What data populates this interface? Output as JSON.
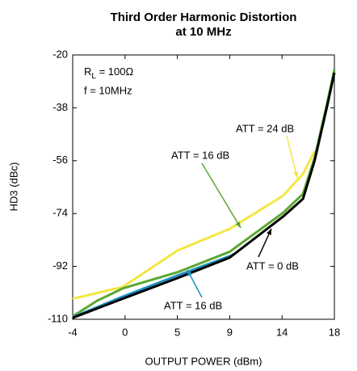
{
  "chart_data": {
    "type": "line",
    "title": [
      "Third Order Harmonic Distortion",
      "at 10 MHz"
    ],
    "xlabel": "OUTPUT POWER (dBm)",
    "ylabel": "HD3  (dBc)",
    "xlim": [
      -4,
      18.5
    ],
    "xticks": [
      -4,
      {
        "value": 0.5,
        "label": "0"
      },
      5,
      {
        "value": 9.5,
        "label": "9"
      },
      14,
      {
        "value": 18.5,
        "label": "18"
      }
    ],
    "ylim": [
      -110,
      -20
    ],
    "yticks": [
      -110,
      -92,
      -74,
      -56,
      -38,
      -20
    ],
    "grid": false,
    "conditions": [
      {
        "base": "R",
        "sub": "L",
        "rest": " = 100Ω"
      },
      "f = 10MHz"
    ],
    "series": [
      {
        "name": "ATT = 24 dB",
        "color": "#f5e642",
        "x": [
          -4,
          0.3,
          5,
          9.5,
          14.1,
          15.8,
          16.8
        ],
        "values": [
          -103,
          -99,
          -86.6,
          -79.2,
          -67.9,
          -60.5,
          -52.8
        ]
      },
      {
        "name": "ATT = 16 dB",
        "color": "#5aa832",
        "x": [
          -4,
          -1.9,
          0.3,
          5,
          9.5,
          14.1,
          15.8,
          16.8,
          17.9,
          18.5
        ],
        "values": [
          -109,
          -103.7,
          -99.5,
          -94,
          -87,
          -73.7,
          -67.3,
          -55,
          -36,
          -25
        ]
      },
      {
        "name": "ATT = 16 dB",
        "color": "#1e8fc0",
        "x": [
          -4,
          0.3,
          5,
          9.5,
          10
        ],
        "values": [
          -109.3,
          -102.3,
          -95.1,
          -88.5,
          -87.6
        ]
      },
      {
        "name": "ATT = 0 dB",
        "color": "#000000",
        "x": [
          -4,
          0.3,
          5,
          9.5,
          14.1,
          15.8,
          16.8,
          17.9,
          18.5
        ],
        "values": [
          -109.5,
          -103,
          -96,
          -89,
          -75,
          -69,
          -56,
          -37,
          -26
        ]
      }
    ]
  }
}
